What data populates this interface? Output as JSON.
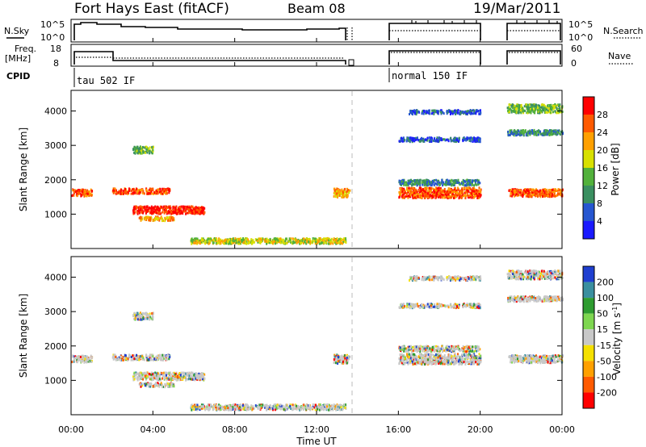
{
  "header": {
    "station": "Fort Hays East (fitACF)",
    "beam": "Beam 08",
    "date": "19/Mar/2011"
  },
  "panels": {
    "nsky": {
      "left_label": "N.Sky",
      "right_label": "N.Search",
      "left_ticks": [
        "10^5",
        "10^0"
      ],
      "right_ticks": [
        "10^5",
        "10^0"
      ]
    },
    "freq": {
      "left_label_1": "Freq.",
      "left_label_2": "[MHz]",
      "right_label": "Nave",
      "left_ticks": [
        "18",
        "8"
      ],
      "right_ticks": [
        "60",
        "0"
      ]
    },
    "cpid": {
      "label": "CPID",
      "segments": [
        {
          "name": "tau 502 IF",
          "start_hour": 0.0
        },
        {
          "name": "normal 150 IF",
          "start_hour": 16.0
        }
      ]
    }
  },
  "xaxis": {
    "label": "Time UT",
    "ticks": [
      "00:00",
      "04:00",
      "08:00",
      "12:00",
      "16:00",
      "20:00",
      "00:00"
    ],
    "tick_hours": [
      0,
      4,
      8,
      12,
      16,
      20,
      24
    ]
  },
  "yaxis": {
    "label": "Slant Range [km]",
    "ticks": [
      "1000",
      "2000",
      "3000",
      "4000"
    ],
    "tick_values": [
      1000,
      2000,
      3000,
      4000
    ],
    "range": [
      0,
      4600
    ]
  },
  "power_scale": {
    "label": "Power [dB]",
    "ticks": [
      "4",
      "8",
      "12",
      "16",
      "20",
      "24",
      "28"
    ],
    "colors": [
      "#1a1aff",
      "#2656d0",
      "#3a8f60",
      "#52b13b",
      "#d8e000",
      "#ffa000",
      "#ff5a00",
      "#ff0000"
    ]
  },
  "velocity_scale": {
    "label": "Velocity [m s",
    "label_sup": "-1",
    "label_end": "]",
    "ticks": [
      "200",
      "100",
      "50",
      "15",
      "-15",
      "-50",
      "-100",
      "-200"
    ],
    "colors": [
      "#1f3fd0",
      "#3a8f9f",
      "#2e9c30",
      "#7ed650",
      "#c8c8c8",
      "#f5e000",
      "#ffa000",
      "#ff5a00",
      "#ff0000"
    ]
  },
  "chart_data": {
    "type": "heatmap",
    "x_range_hours": [
      0,
      24
    ],
    "y_range_km": [
      0,
      4600
    ],
    "data_gap_hours": [
      13.8,
      15.7
    ],
    "power_features": [
      {
        "name": "band-1500",
        "t0": 0.0,
        "t1": 1.0,
        "r": 1650,
        "w": 200,
        "level": 6
      },
      {
        "name": "band-1700a",
        "t0": 2.0,
        "t1": 4.8,
        "r": 1700,
        "w": 160,
        "level": 6
      },
      {
        "name": "band-1200",
        "t0": 3.0,
        "t1": 6.5,
        "r": 1150,
        "w": 220,
        "level": 7
      },
      {
        "name": "band-900",
        "t0": 3.3,
        "t1": 5.0,
        "r": 900,
        "w": 120,
        "level": 5
      },
      {
        "name": "band-2600",
        "t0": 3.0,
        "t1": 4.0,
        "r": 2900,
        "w": 200,
        "level": 3
      },
      {
        "name": "band-near",
        "t0": 5.8,
        "t1": 13.4,
        "r": 250,
        "w": 160,
        "level": 4
      },
      {
        "name": "band-late",
        "t0": 12.8,
        "t1": 13.6,
        "r": 1650,
        "w": 250,
        "level": 5
      },
      {
        "name": "band-evening-1",
        "t0": 16.0,
        "t1": 20.0,
        "r": 1650,
        "w": 300,
        "level": 6
      },
      {
        "name": "band-evening-2",
        "t0": 16.0,
        "t1": 20.0,
        "r": 1950,
        "w": 160,
        "level": 2
      },
      {
        "name": "band-evening-3",
        "t0": 16.0,
        "t1": 20.0,
        "r": 3200,
        "w": 120,
        "level": 1
      },
      {
        "name": "band-evening-4",
        "t0": 16.5,
        "t1": 20.0,
        "r": 4000,
        "w": 120,
        "level": 1
      },
      {
        "name": "band-night-1",
        "t0": 21.3,
        "t1": 24.0,
        "r": 1650,
        "w": 220,
        "level": 6
      },
      {
        "name": "band-night-2",
        "t0": 21.3,
        "t1": 24.0,
        "r": 3400,
        "w": 150,
        "level": 2
      },
      {
        "name": "band-night-3",
        "t0": 21.3,
        "t1": 24.0,
        "r": 4100,
        "w": 250,
        "level": 3
      }
    ]
  }
}
